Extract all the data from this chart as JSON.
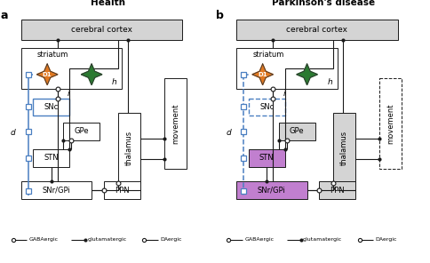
{
  "panel_a_title": "Health",
  "panel_b_title": "Parkinson's disease",
  "label_a": "a",
  "label_b": "b",
  "bg_color": "#ffffff",
  "box_gray": "#d4d4d4",
  "box_purple": "#c17fcf",
  "blue": "#4a7fc1",
  "black": "#1a1a1a",
  "d1_color": "#e07820",
  "d2_color": "#2a7a30",
  "white": "#ffffff"
}
